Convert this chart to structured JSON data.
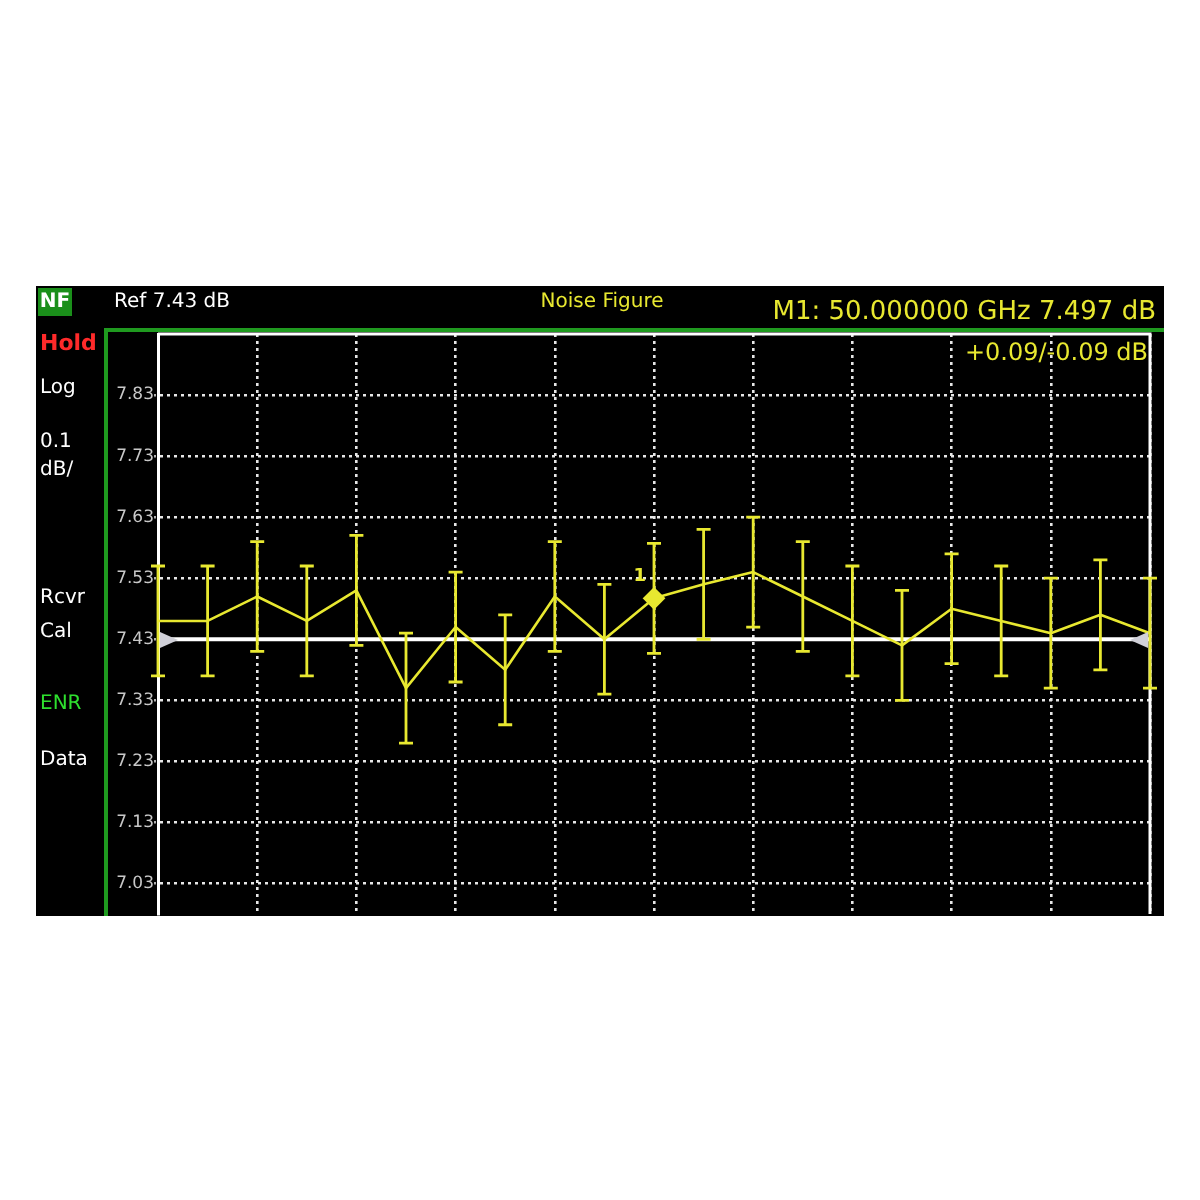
{
  "chart_data": {
    "type": "line",
    "title": "Noise Figure",
    "categories": [
      null,
      null,
      null,
      null,
      null,
      null,
      null,
      null,
      null,
      null,
      null,
      null,
      null,
      null,
      null,
      null,
      null,
      null,
      null,
      null,
      null
    ],
    "series": [
      {
        "color": "#e8e830",
        "values": [
          7.46,
          7.46,
          7.5,
          7.46,
          7.51,
          7.35,
          7.45,
          7.38,
          7.5,
          7.43,
          7.497,
          7.52,
          7.54,
          7.5,
          7.46,
          7.42,
          7.48,
          7.46,
          7.44,
          7.47,
          7.44
        ],
        "errors": [
          0.09,
          0.09,
          0.09,
          0.09,
          0.09,
          0.09,
          0.09,
          0.09,
          0.09,
          0.09,
          0.09,
          0.09,
          0.09,
          0.09,
          0.09,
          0.09,
          0.09,
          0.09,
          0.09,
          0.09,
          0.09
        ]
      },
      {
        "type": "scatter",
        "name": "1",
        "color": "#e8e830",
        "marker": "diamond",
        "values": [
          null,
          null,
          null,
          null,
          null,
          null,
          null,
          null,
          null,
          null,
          7.497,
          null,
          null,
          null,
          null,
          null,
          null,
          null,
          null,
          null,
          null
        ]
      }
    ],
    "ylim": [
      6.98,
      7.93
    ],
    "yticks": [
      7.03,
      7.13,
      7.23,
      7.33,
      7.43,
      7.53,
      7.63,
      7.73,
      7.83
    ],
    "ref_lines": [
      {
        "axis": "y",
        "value": 7.43,
        "color": "#ffffff"
      }
    ],
    "annotations": [
      "NF",
      "Ref 7.43 dB",
      "M1: 50.000000 GHz 7.497 dB",
      "Hold",
      "+0.09/-0.09 dB",
      "Log",
      "0.1 dB/",
      "Rcvr Cal",
      "ENR",
      "Data"
    ],
    "grid": true,
    "tick_labels": "y",
    "marker": "none",
    "line_style": "solid"
  }
}
